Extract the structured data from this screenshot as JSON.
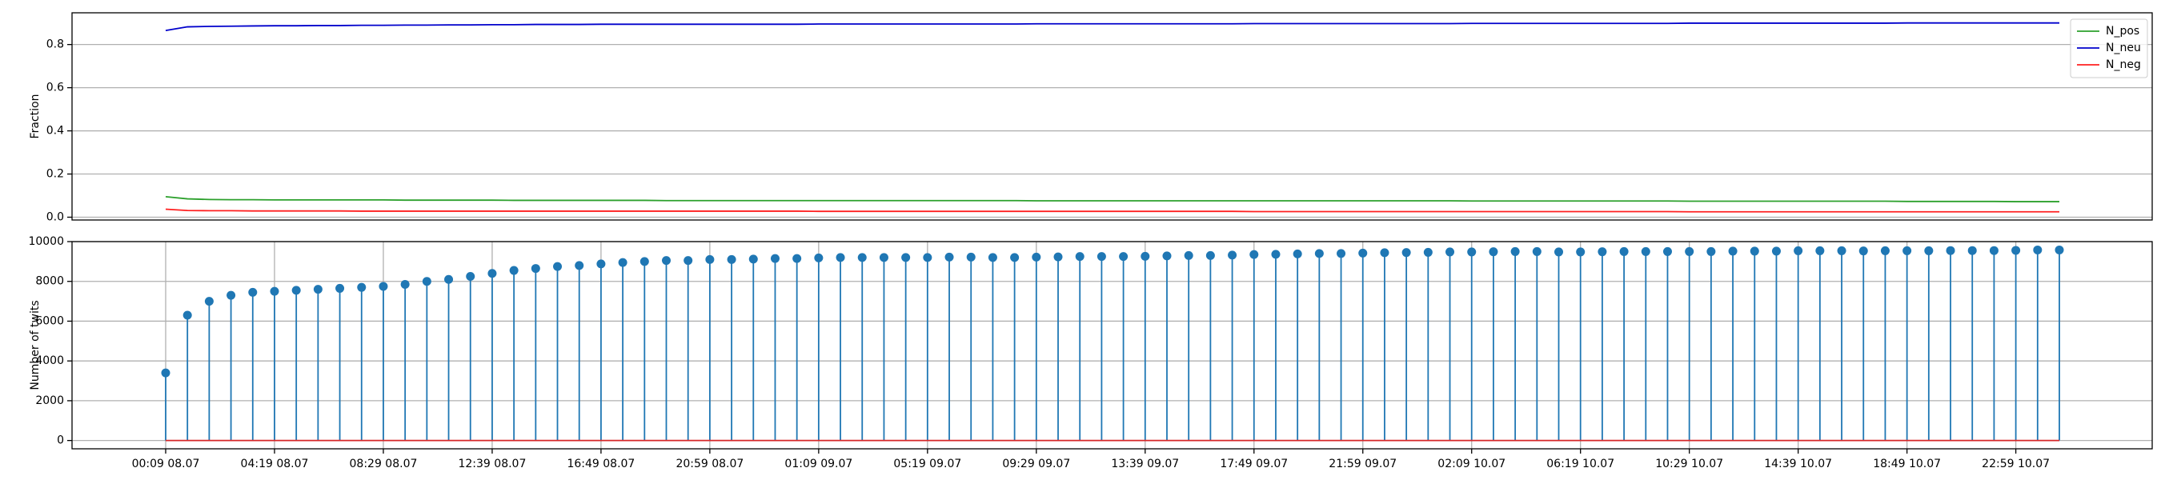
{
  "chart_data": [
    {
      "type": "line",
      "y_label": "Fraction",
      "ylim": [
        -0.013,
        0.947
      ],
      "yticks": [
        {
          "value": 0,
          "label": "0.0"
        },
        0.2,
        0.4,
        0.6,
        0.8
      ],
      "grid": "y",
      "legend": "upper right",
      "series": [
        {
          "name": "N_pos",
          "color": "#2ca02c",
          "values": [
            0.095,
            0.085,
            0.082,
            0.081,
            0.081,
            0.08,
            0.08,
            0.08,
            0.08,
            0.08,
            0.08,
            0.079,
            0.079,
            0.079,
            0.079,
            0.079,
            0.078,
            0.078,
            0.078,
            0.078,
            0.078,
            0.078,
            0.078,
            0.077,
            0.077,
            0.077,
            0.077,
            0.077,
            0.077,
            0.077,
            0.077,
            0.077,
            0.077,
            0.077,
            0.077,
            0.077,
            0.077,
            0.077,
            0.077,
            0.077,
            0.076,
            0.076,
            0.076,
            0.076,
            0.076,
            0.076,
            0.076,
            0.076,
            0.076,
            0.076,
            0.076,
            0.076,
            0.076,
            0.076,
            0.076,
            0.076,
            0.076,
            0.076,
            0.076,
            0.076,
            0.075,
            0.075,
            0.075,
            0.075,
            0.075,
            0.075,
            0.075,
            0.075,
            0.075,
            0.075,
            0.074,
            0.074,
            0.074,
            0.074,
            0.074,
            0.074,
            0.074,
            0.074,
            0.074,
            0.074,
            0.073,
            0.073,
            0.073,
            0.073,
            0.073,
            0.072,
            0.072,
            0.072
          ]
        },
        {
          "name": "N_neu",
          "color": "#0000cc",
          "values": [
            0.865,
            0.882,
            0.884,
            0.885,
            0.886,
            0.887,
            0.887,
            0.888,
            0.888,
            0.889,
            0.889,
            0.89,
            0.89,
            0.891,
            0.891,
            0.892,
            0.892,
            0.893,
            0.893,
            0.893,
            0.894,
            0.894,
            0.894,
            0.894,
            0.894,
            0.894,
            0.894,
            0.894,
            0.894,
            0.894,
            0.895,
            0.895,
            0.895,
            0.895,
            0.895,
            0.895,
            0.895,
            0.895,
            0.895,
            0.895,
            0.896,
            0.896,
            0.896,
            0.896,
            0.896,
            0.896,
            0.896,
            0.896,
            0.896,
            0.896,
            0.897,
            0.897,
            0.897,
            0.897,
            0.897,
            0.897,
            0.897,
            0.897,
            0.897,
            0.897,
            0.898,
            0.898,
            0.898,
            0.898,
            0.898,
            0.898,
            0.898,
            0.898,
            0.898,
            0.898,
            0.899,
            0.899,
            0.899,
            0.899,
            0.899,
            0.899,
            0.899,
            0.899,
            0.899,
            0.899,
            0.9,
            0.9,
            0.9,
            0.9,
            0.9,
            0.9,
            0.9,
            0.9
          ]
        },
        {
          "name": "N_neg",
          "color": "#ff2020",
          "values": [
            0.037,
            0.031,
            0.03,
            0.03,
            0.029,
            0.029,
            0.029,
            0.029,
            0.029,
            0.028,
            0.028,
            0.028,
            0.028,
            0.028,
            0.028,
            0.028,
            0.028,
            0.028,
            0.028,
            0.028,
            0.028,
            0.028,
            0.028,
            0.028,
            0.028,
            0.028,
            0.028,
            0.028,
            0.028,
            0.028,
            0.027,
            0.027,
            0.027,
            0.027,
            0.027,
            0.027,
            0.027,
            0.027,
            0.027,
            0.027,
            0.027,
            0.027,
            0.027,
            0.027,
            0.027,
            0.027,
            0.027,
            0.027,
            0.027,
            0.027,
            0.026,
            0.026,
            0.026,
            0.026,
            0.026,
            0.026,
            0.026,
            0.026,
            0.026,
            0.026,
            0.026,
            0.026,
            0.026,
            0.026,
            0.026,
            0.026,
            0.026,
            0.026,
            0.026,
            0.026,
            0.025,
            0.025,
            0.025,
            0.025,
            0.025,
            0.025,
            0.025,
            0.025,
            0.025,
            0.025,
            0.025,
            0.025,
            0.025,
            0.025,
            0.025,
            0.025,
            0.025,
            0.025
          ]
        }
      ]
    },
    {
      "type": "stem",
      "y_label": "Number of twits",
      "ylim": [
        -417,
        10000
      ],
      "yticks": [
        0,
        2000,
        4000,
        6000,
        8000,
        10000
      ],
      "grid": "both",
      "color": "#1f77b4",
      "baseline_color": "#d62728",
      "categories": [
        "00:09 08.07",
        null,
        null,
        null,
        null,
        "04:19 08.07",
        null,
        null,
        null,
        null,
        "08:29 08.07",
        null,
        null,
        null,
        null,
        "12:39 08.07",
        null,
        null,
        null,
        null,
        "16:49 08.07",
        null,
        null,
        null,
        null,
        "20:59 08.07",
        null,
        null,
        null,
        null,
        "01:09 09.07",
        null,
        null,
        null,
        null,
        "05:19 09.07",
        null,
        null,
        null,
        null,
        "09:29 09.07",
        null,
        null,
        null,
        null,
        "13:39 09.07",
        null,
        null,
        null,
        null,
        "17:49 09.07",
        null,
        null,
        null,
        null,
        "21:59 09.07",
        null,
        null,
        null,
        null,
        "02:09 10.07",
        null,
        null,
        null,
        null,
        "06:19 10.07",
        null,
        null,
        null,
        null,
        "10:29 10.07",
        null,
        null,
        null,
        null,
        "14:39 10.07",
        null,
        null,
        null,
        null,
        "18:49 10.07",
        null,
        null,
        null,
        null,
        "22:59 10.07",
        null,
        null
      ],
      "values": [
        3400,
        6300,
        7000,
        7300,
        7450,
        7500,
        7550,
        7600,
        7650,
        7700,
        7750,
        7850,
        8000,
        8100,
        8250,
        8400,
        8550,
        8650,
        8750,
        8800,
        8880,
        8950,
        9000,
        9050,
        9050,
        9100,
        9100,
        9120,
        9150,
        9150,
        9180,
        9200,
        9200,
        9200,
        9200,
        9200,
        9220,
        9220,
        9200,
        9200,
        9220,
        9230,
        9250,
        9250,
        9250,
        9260,
        9280,
        9300,
        9300,
        9320,
        9350,
        9360,
        9380,
        9400,
        9400,
        9420,
        9440,
        9450,
        9460,
        9480,
        9480,
        9490,
        9500,
        9500,
        9480,
        9480,
        9490,
        9500,
        9500,
        9500,
        9500,
        9500,
        9520,
        9520,
        9520,
        9540,
        9540,
        9540,
        9530,
        9540,
        9540,
        9540,
        9550,
        9550,
        9550,
        9560,
        9580,
        9580
      ]
    }
  ]
}
